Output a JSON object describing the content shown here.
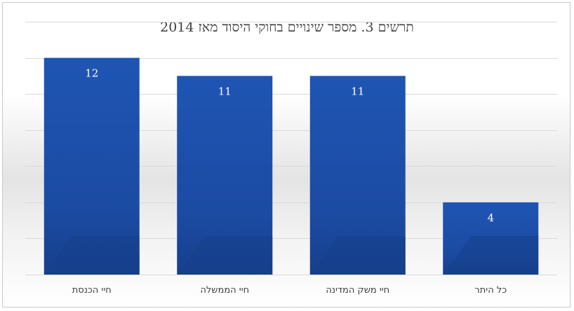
{
  "chart_data": {
    "type": "bar",
    "title": "תרשים 3. מספר שינויים בחוקי היסוד מאז 2014",
    "categories": [
      "חיי הכנסת",
      "חיי הממשלה",
      "חיי משק המדינה",
      "כל היתר"
    ],
    "values": [
      12,
      11,
      11,
      4
    ],
    "xlabel": "",
    "ylabel": "",
    "ylim": [
      0,
      14
    ],
    "grid": true,
    "bar_color": "#1c4ea7",
    "bar_color_dark": "#163f8a",
    "grid_color": "#d9d9d9",
    "legend": "none"
  }
}
